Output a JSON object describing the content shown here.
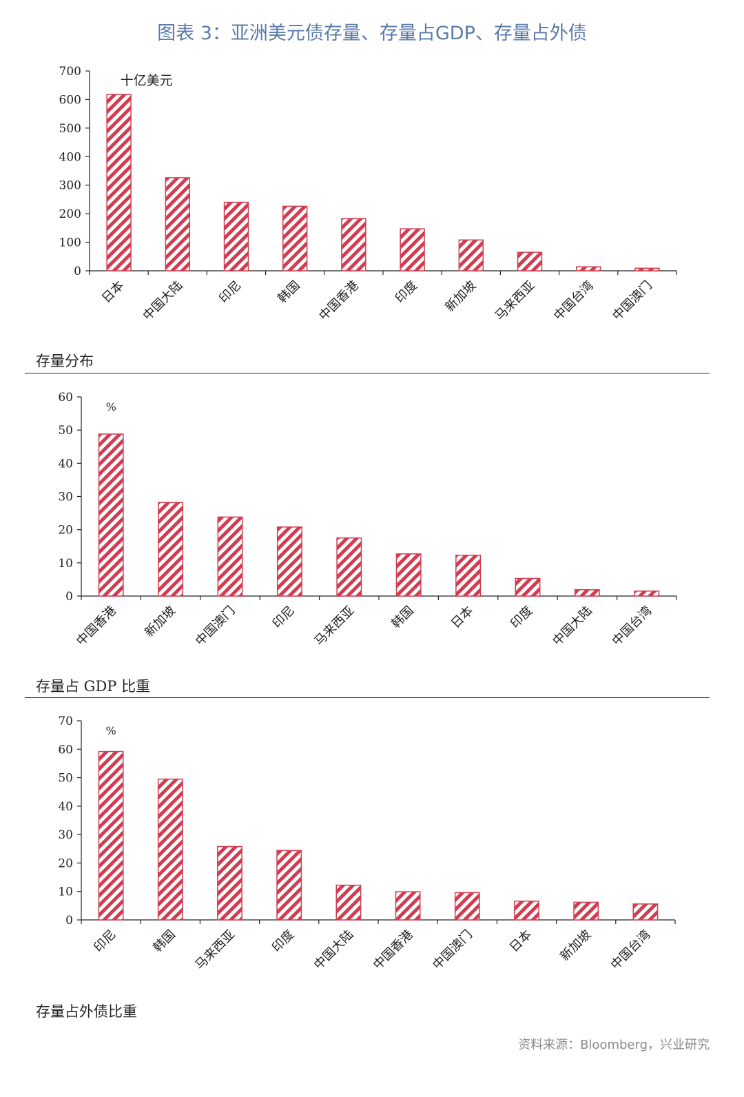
{
  "title": "图表 3：亚洲美元债存量、存量占GDP、存量占外债",
  "source": "资料来源：Bloomberg，兴业研究",
  "colors": {
    "bar": "#d23c50",
    "title": "#5a7aa8"
  },
  "chart_data": [
    {
      "type": "bar",
      "caption": "存量分布",
      "unit": "十亿美元",
      "ylim": [
        0,
        700
      ],
      "yticks": [
        0,
        100,
        200,
        300,
        400,
        500,
        600,
        700
      ],
      "categories": [
        "日本",
        "中国大陆",
        "印尼",
        "韩国",
        "中国香港",
        "印度",
        "新加坡",
        "马来西亚",
        "中国台湾",
        "中国澳门"
      ],
      "values": [
        618,
        326,
        240,
        226,
        183,
        147,
        108,
        65,
        14,
        9
      ]
    },
    {
      "type": "bar",
      "caption": "存量占 GDP 比重",
      "unit": "%",
      "ylim": [
        0,
        60
      ],
      "yticks": [
        0,
        10,
        20,
        30,
        40,
        50,
        60
      ],
      "categories": [
        "中国香港",
        "新加坡",
        "中国澳门",
        "印尼",
        "马来西亚",
        "韩国",
        "日本",
        "印度",
        "中国大陆",
        "中国台湾"
      ],
      "values": [
        48.8,
        28.2,
        23.8,
        20.8,
        17.5,
        12.7,
        12.3,
        5.3,
        1.9,
        1.5
      ]
    },
    {
      "type": "bar",
      "caption": "存量占外债比重",
      "unit": "%",
      "ylim": [
        0,
        70
      ],
      "yticks": [
        0,
        10,
        20,
        30,
        40,
        50,
        60,
        70
      ],
      "categories": [
        "印尼",
        "韩国",
        "马来西亚",
        "印度",
        "中国大陆",
        "中国香港",
        "中国澳门",
        "日本",
        "新加坡",
        "中国台湾"
      ],
      "values": [
        59.2,
        49.5,
        25.8,
        24.4,
        12.2,
        9.9,
        9.6,
        6.6,
        6.2,
        5.6
      ]
    }
  ]
}
